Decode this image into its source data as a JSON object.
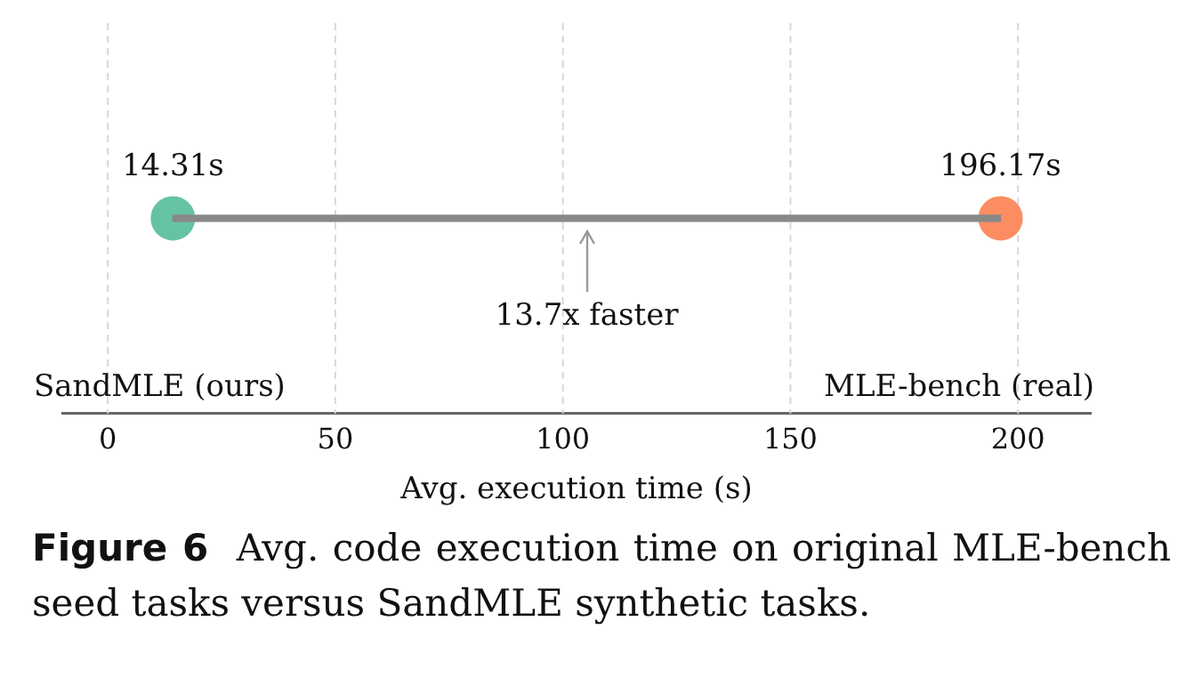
{
  "chart_data": {
    "type": "bar",
    "orientation": "horizontal",
    "categories": [
      null
    ],
    "xlabel": "Avg. execution time (s)",
    "xlim": [
      -10,
      216
    ],
    "xticks": [
      0,
      50,
      100,
      150,
      200
    ],
    "grid": "x",
    "legend": false,
    "marker": "circle",
    "series": [
      {
        "color": "#888888",
        "values": [
          181.86
        ],
        "base": [
          14.31
        ]
      },
      {
        "type": "scatter",
        "color": "#66c2a5",
        "values": [
          14.31
        ],
        "value_labels": [
          "14.31s"
        ]
      },
      {
        "type": "scatter",
        "color": "#fc8d62",
        "values": [
          196.17
        ],
        "value_labels": [
          "196.17s"
        ]
      }
    ],
    "annotations": [
      "13.7x faster",
      "SandMLE (ours)",
      "MLE-bench (real)",
      "Figure 6",
      "Avg. code execution time on original MLE-bench seed tasks versus SandMLE synthetic tasks."
    ]
  }
}
